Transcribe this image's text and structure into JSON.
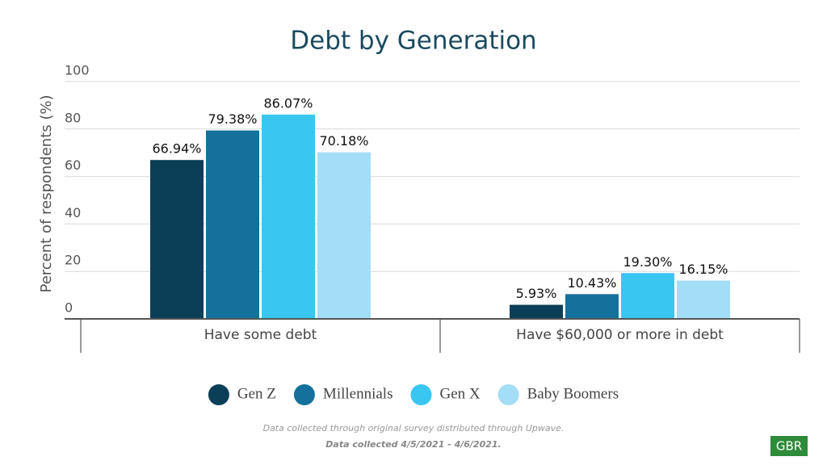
{
  "chart_data": {
    "type": "bar",
    "title": "Debt by Generation",
    "y_label": "Percent of respondents (%)",
    "categories": [
      "Have some debt",
      "Have $60,000 or more in debt"
    ],
    "series": [
      {
        "name": "Gen Z",
        "color": "#0b3f57",
        "values": [
          66.94,
          5.93
        ],
        "value_labels": [
          "66.94%",
          "5.93%"
        ]
      },
      {
        "name": "Millennials",
        "color": "#13719c",
        "values": [
          79.38,
          10.43
        ],
        "value_labels": [
          "79.38%",
          "10.43%"
        ]
      },
      {
        "name": "Gen X",
        "color": "#39c6f1",
        "values": [
          86.07,
          19.3
        ],
        "value_labels": [
          "86.07%",
          "19.30%"
        ]
      },
      {
        "name": "Baby Boomers",
        "color": "#a4ddf6",
        "values": [
          70.18,
          16.15
        ],
        "value_labels": [
          "70.18%",
          "16.15%"
        ]
      }
    ],
    "ylim": [
      0,
      100
    ],
    "yticks": [
      0,
      20,
      40,
      60,
      80,
      100
    ],
    "grid": true,
    "footnotes": [
      "Data collected through original survey distributed through Upwave.",
      "Data collected 4/5/2021 - 4/6/2021."
    ],
    "badge": "GBR"
  }
}
